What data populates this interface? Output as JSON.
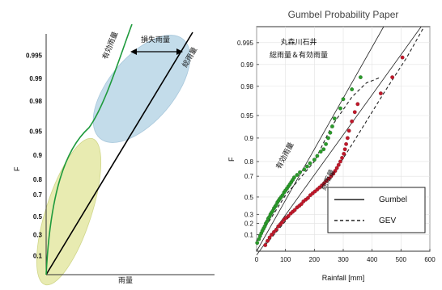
{
  "chart_data": [
    {
      "type": "line",
      "panel": "schematic",
      "title": "",
      "xlabel": "雨量",
      "ylabel": "F",
      "y_ticks": [
        "0.1",
        "0.3",
        "0.5",
        "0.7",
        "0.8",
        "0.9",
        "0.95",
        "0.98",
        "0.99",
        "0.995"
      ],
      "annotations": {
        "effective_rain_label": "有効雨量",
        "loss_label": "損失雨量",
        "total_rain_label": "総雨量"
      },
      "colors": {
        "effective_curve": "#1e9a3c",
        "total_line": "#000000",
        "upper_ellipse": "#b9d6e6",
        "lower_ellipse": "#e4e7a3"
      }
    },
    {
      "type": "scatter",
      "panel": "gumbel",
      "title": "Gumbel Probability Paper",
      "xlabel": "Rainfall [mm]",
      "ylabel": "F",
      "xlim": [
        0,
        600
      ],
      "x_ticks": [
        0,
        100,
        200,
        300,
        400,
        500,
        600
      ],
      "y_ticks": [
        "0.1",
        "0.2",
        "0.3",
        "0.5",
        "0.7",
        "0.8",
        "0.9",
        "0.95",
        "0.98",
        "0.99",
        "0.995"
      ],
      "y_ticks_values": [
        0.1,
        0.2,
        0.3,
        0.5,
        0.7,
        0.8,
        0.9,
        0.95,
        0.98,
        0.99,
        0.995
      ],
      "ylim": [
        0.02,
        0.997
      ],
      "inset_lines": [
        "丸森川石井",
        "総雨量＆有効雨量"
      ],
      "series_labels": {
        "effective": "有効雨量",
        "total": "総雨量"
      },
      "legend": {
        "placement": "bottom-right",
        "entries": [
          {
            "label": "Gumbel",
            "style": "solid"
          },
          {
            "label": "GEV",
            "style": "dashed"
          }
        ]
      },
      "series": [
        {
          "key": "effective",
          "color": "#2a9a2a",
          "points": [
            [
              2,
              0.05
            ],
            [
              8,
              0.07
            ],
            [
              12,
              0.09
            ],
            [
              16,
              0.11
            ],
            [
              20,
              0.13
            ],
            [
              24,
              0.15
            ],
            [
              28,
              0.17
            ],
            [
              32,
              0.2
            ],
            [
              36,
              0.22
            ],
            [
              40,
              0.25
            ],
            [
              44,
              0.27
            ],
            [
              48,
              0.3
            ],
            [
              52,
              0.32
            ],
            [
              56,
              0.34
            ],
            [
              60,
              0.37
            ],
            [
              64,
              0.39
            ],
            [
              68,
              0.41
            ],
            [
              72,
              0.44
            ],
            [
              76,
              0.46
            ],
            [
              80,
              0.48
            ],
            [
              85,
              0.5
            ],
            [
              90,
              0.52
            ],
            [
              95,
              0.55
            ],
            [
              100,
              0.57
            ],
            [
              105,
              0.59
            ],
            [
              110,
              0.61
            ],
            [
              115,
              0.63
            ],
            [
              120,
              0.65
            ],
            [
              125,
              0.67
            ],
            [
              130,
              0.69
            ],
            [
              140,
              0.71
            ],
            [
              150,
              0.73
            ],
            [
              165,
              0.75
            ],
            [
              175,
              0.77
            ],
            [
              185,
              0.79
            ],
            [
              200,
              0.81
            ],
            [
              210,
              0.83
            ],
            [
              222,
              0.85
            ],
            [
              232,
              0.86
            ],
            [
              240,
              0.88
            ],
            [
              248,
              0.9
            ],
            [
              255,
              0.915
            ],
            [
              262,
              0.93
            ],
            [
              270,
              0.945
            ],
            [
              290,
              0.96
            ],
            [
              300,
              0.97
            ],
            [
              330,
              0.978
            ],
            [
              360,
              0.985
            ]
          ],
          "gumbel_line": [
            [
              0,
              0.02
            ],
            [
              440,
              0.997
            ]
          ],
          "gev_curve": [
            [
              0,
              0.06
            ],
            [
              100,
              0.52
            ],
            [
              200,
              0.8
            ],
            [
              260,
              0.93
            ],
            [
              330,
              0.972
            ],
            [
              380,
              0.982
            ],
            [
              430,
              0.985
            ]
          ]
        },
        {
          "key": "total",
          "color": "#c0182a",
          "points": [
            [
              30,
              0.04
            ],
            [
              38,
              0.06
            ],
            [
              45,
              0.08
            ],
            [
              52,
              0.1
            ],
            [
              60,
              0.12
            ],
            [
              68,
              0.14
            ],
            [
              75,
              0.17
            ],
            [
              82,
              0.19
            ],
            [
              88,
              0.21
            ],
            [
              95,
              0.24
            ],
            [
              102,
              0.26
            ],
            [
              110,
              0.28
            ],
            [
              118,
              0.31
            ],
            [
              125,
              0.33
            ],
            [
              132,
              0.35
            ],
            [
              140,
              0.38
            ],
            [
              148,
              0.4
            ],
            [
              155,
              0.42
            ],
            [
              162,
              0.45
            ],
            [
              170,
              0.47
            ],
            [
              178,
              0.49
            ],
            [
              186,
              0.52
            ],
            [
              194,
              0.54
            ],
            [
              202,
              0.56
            ],
            [
              210,
              0.58
            ],
            [
              218,
              0.6
            ],
            [
              226,
              0.62
            ],
            [
              234,
              0.64
            ],
            [
              242,
              0.66
            ],
            [
              250,
              0.68
            ],
            [
              258,
              0.7
            ],
            [
              266,
              0.72
            ],
            [
              272,
              0.74
            ],
            [
              278,
              0.76
            ],
            [
              284,
              0.78
            ],
            [
              290,
              0.8
            ],
            [
              296,
              0.82
            ],
            [
              302,
              0.84
            ],
            [
              306,
              0.86
            ],
            [
              310,
              0.88
            ],
            [
              315,
              0.9
            ],
            [
              320,
              0.92
            ],
            [
              330,
              0.94
            ],
            [
              340,
              0.955
            ],
            [
              350,
              0.965
            ],
            [
              430,
              0.975
            ],
            [
              470,
              0.985
            ],
            [
              505,
              0.992
            ]
          ],
          "gumbel_line": [
            [
              0,
              0.012
            ],
            [
              570,
              0.997
            ]
          ],
          "gev_curve": [
            [
              30,
              0.04
            ],
            [
              150,
              0.42
            ],
            [
              260,
              0.7
            ],
            [
              320,
              0.86
            ],
            [
              380,
              0.94
            ],
            [
              440,
              0.975
            ],
            [
              520,
              0.992
            ],
            [
              580,
              0.997
            ]
          ]
        }
      ]
    }
  ]
}
